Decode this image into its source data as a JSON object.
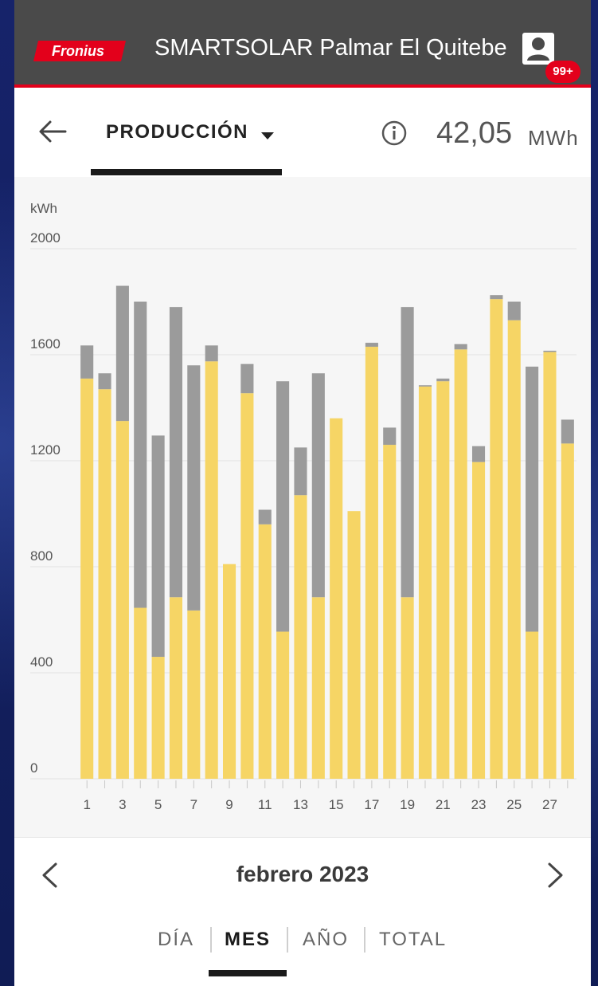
{
  "header": {
    "logo_text": "Fronius",
    "title": "SMARTSOLAR Palmar El Quitebe",
    "notification_badge": "99+"
  },
  "subheader": {
    "dropdown_label": "PRODUCCIÓN",
    "total_value": "42,05",
    "total_unit": "MWh"
  },
  "chart_data": {
    "type": "bar",
    "stacked": true,
    "ylabel": "kWh",
    "ylim": [
      0,
      2000
    ],
    "yticks": [
      "0",
      "400",
      "800",
      "1200",
      "1600",
      "2000"
    ],
    "x_tick_labels": [
      "1",
      "3",
      "5",
      "7",
      "9",
      "11",
      "13",
      "15",
      "17",
      "19",
      "21",
      "23",
      "25",
      "27"
    ],
    "categories": [
      "1",
      "2",
      "3",
      "4",
      "5",
      "6",
      "7",
      "8",
      "9",
      "10",
      "11",
      "12",
      "13",
      "14",
      "15",
      "16",
      "17",
      "18",
      "19",
      "20",
      "21",
      "22",
      "23",
      "24",
      "25",
      "26",
      "27",
      "28"
    ],
    "series": [
      {
        "color": "#f6d565",
        "values": [
          1510,
          1470,
          1350,
          645,
          460,
          685,
          635,
          1575,
          810,
          1455,
          960,
          555,
          1070,
          685,
          1360,
          1010,
          1630,
          1260,
          685,
          1480,
          1500,
          1620,
          1195,
          1810,
          1730,
          555,
          1610,
          1265
        ]
      },
      {
        "color": "#9b9b9b",
        "values": [
          125,
          60,
          510,
          1155,
          835,
          1095,
          925,
          60,
          0,
          110,
          55,
          945,
          180,
          845,
          0,
          0,
          15,
          65,
          1095,
          5,
          10,
          20,
          60,
          15,
          70,
          1000,
          5,
          90
        ]
      }
    ]
  },
  "navigation": {
    "period_label": "febrero 2023"
  },
  "tabs": [
    {
      "label": "DÍA"
    },
    {
      "label": "MES"
    },
    {
      "label": "AÑO"
    },
    {
      "label": "TOTAL"
    }
  ],
  "colors": {
    "accent_red": "#e3001b",
    "header_gray": "#4a4a4a",
    "production_yellow": "#f6d565",
    "grid_gray": "#9b9b9b"
  }
}
